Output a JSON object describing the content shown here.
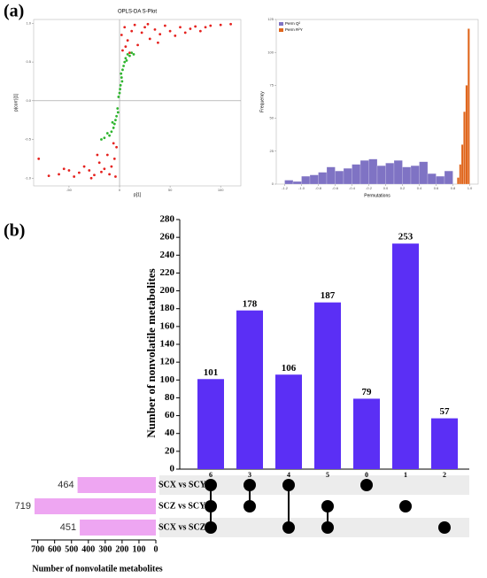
{
  "panels": [
    "(a)",
    "(b)"
  ],
  "chart_data": [
    {
      "type": "scatter",
      "title": "OPLS-DA S-Plot",
      "x_label": "p[1]",
      "y_label": "p(corr)[1]",
      "xlim": [
        -85,
        120
      ],
      "ylim": [
        -1.1,
        1.05
      ],
      "xticks": [
        -50,
        0,
        50,
        100
      ],
      "yticks": [
        {
          "value": -1,
          "label": "-1.0"
        },
        -0.5,
        {
          "value": 0,
          "label": "0.0"
        },
        0.5,
        {
          "value": 1,
          "label": "1.0"
        }
      ],
      "series": [
        {
          "color": "#e5211e",
          "x": [
            2,
            5,
            8,
            12,
            15,
            18,
            22,
            25,
            30,
            35,
            40,
            45,
            50,
            55,
            60,
            65,
            70,
            75,
            80,
            90,
            100,
            110,
            3,
            6,
            10,
            28,
            38,
            85,
            -3,
            -5,
            -8,
            -10,
            -12,
            -15,
            -18,
            -20,
            -25,
            -30,
            -35,
            -40,
            -45,
            -50,
            -55,
            -60,
            -70,
            -80,
            -6,
            -22,
            -4,
            -28
          ],
          "y": [
            0.85,
            0.95,
            0.78,
            0.9,
            0.98,
            0.72,
            0.88,
            0.95,
            0.8,
            0.92,
            0.86,
            0.97,
            0.9,
            0.84,
            0.95,
            0.88,
            0.93,
            0.96,
            0.9,
            0.97,
            0.98,
            0.99,
            0.65,
            0.7,
            0.62,
            0.99,
            0.75,
            0.95,
            -0.6,
            -0.75,
            -0.85,
            -0.95,
            -0.7,
            -0.88,
            -0.92,
            -0.8,
            -0.96,
            -0.9,
            -0.85,
            -0.93,
            -0.98,
            -0.9,
            -0.88,
            -0.95,
            -0.97,
            -0.75,
            -0.55,
            -0.7,
            -0.98,
            -1.0
          ]
        },
        {
          "color": "#2fb52f",
          "x": [
            -2,
            -1,
            0,
            1,
            2,
            3,
            4,
            5,
            6,
            8,
            10,
            12,
            14,
            -3,
            -4,
            -5,
            -6,
            -8,
            -10,
            -12,
            -15,
            -18,
            0.5,
            1.5,
            2.5,
            -1.5,
            7,
            -7
          ],
          "y": [
            -0.1,
            0.05,
            0.1,
            0.2,
            0.3,
            0.4,
            0.45,
            0.5,
            0.55,
            0.6,
            0.58,
            0.62,
            0.6,
            -0.2,
            -0.25,
            -0.3,
            -0.35,
            -0.4,
            -0.45,
            -0.42,
            -0.48,
            -0.5,
            0.15,
            0.35,
            0.25,
            -0.15,
            0.52,
            -0.28
          ]
        }
      ]
    },
    {
      "type": "histogram",
      "x_label": "Permutations",
      "y_label": "Frequency",
      "xlim": [
        -1.3,
        1.1
      ],
      "ylim": [
        0,
        125
      ],
      "xticks": [
        -1.2,
        {
          "value": -1,
          "label": "-1.0"
        },
        -0.8,
        -0.6,
        -0.4,
        -0.2,
        {
          "value": 0,
          "label": "0.0"
        },
        0.2,
        0.4,
        0.6,
        0.8,
        {
          "value": 1,
          "label": "1.0"
        }
      ],
      "yticks": [
        0,
        25,
        50,
        75,
        100,
        125
      ],
      "legend": "top-left",
      "series": [
        {
          "name": "Perm Q²",
          "color": "#7f73c4",
          "bins": [
            -1.2,
            -1.1,
            -1.0,
            -0.9,
            -0.8,
            -0.7,
            -0.6,
            -0.5,
            -0.4,
            -0.3,
            -0.2,
            -0.1,
            0,
            0.1,
            0.2,
            0.3,
            0.4,
            0.5,
            0.6,
            0.7,
            0.8
          ],
          "counts": [
            3,
            2,
            6,
            7,
            9,
            13,
            10,
            12,
            15,
            18,
            19,
            14,
            16,
            18,
            13,
            14,
            17,
            8,
            6,
            10
          ]
        },
        {
          "name": "Perm R²Y",
          "color": "#e0661c",
          "bins": [
            0.85,
            0.875,
            0.9,
            0.925,
            0.95,
            0.975,
            1.0
          ],
          "counts": [
            5,
            15,
            30,
            55,
            75,
            118
          ]
        }
      ]
    },
    {
      "type": "upset",
      "y_label": "Number of nonvolatile metabolites",
      "categories": [
        "6",
        "3",
        "4",
        "5",
        "0",
        "1",
        "2"
      ],
      "values": [
        101,
        178,
        106,
        187,
        79,
        253,
        57
      ],
      "color": "#5b2ff5",
      "ylim": [
        0,
        280
      ],
      "yticks": [
        0,
        20,
        40,
        60,
        80,
        100,
        120,
        140,
        160,
        180,
        200,
        220,
        240,
        260,
        280
      ],
      "sets": [
        "SCX vs SCY",
        "SCZ vs SCY",
        "SCX vs SCZ"
      ],
      "set_sizes": [
        464,
        719,
        451
      ],
      "set_color": "#eea6f2",
      "set_xlim": [
        0,
        740
      ],
      "set_xticks": [
        0,
        100,
        200,
        300,
        400,
        500,
        600,
        700
      ],
      "set_x_label": "Number of nonvolatile metabolites",
      "matrix": [
        [
          0,
          1,
          2
        ],
        [
          0,
          1
        ],
        [
          0,
          2
        ],
        [
          1,
          2
        ],
        [
          0
        ],
        [
          1
        ],
        [
          2
        ]
      ]
    }
  ]
}
